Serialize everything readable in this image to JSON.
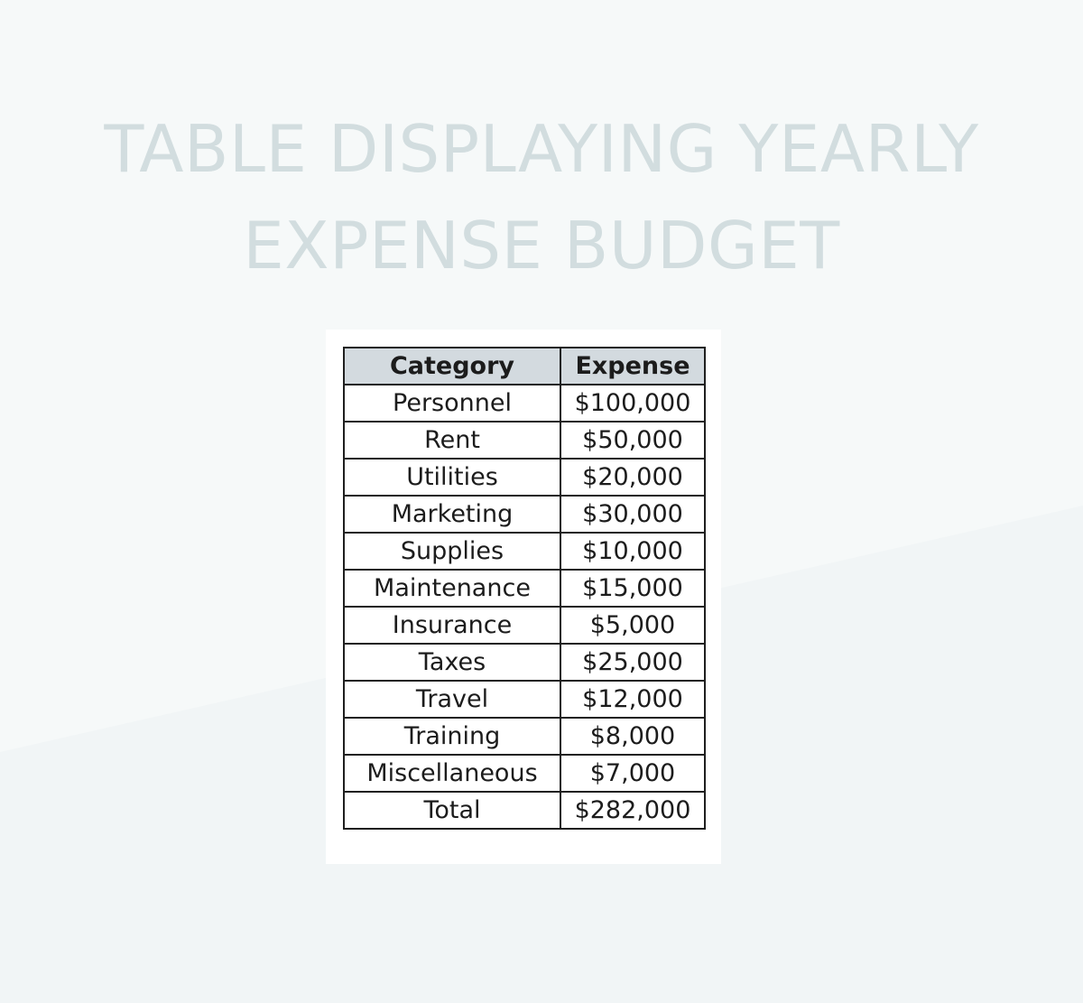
{
  "page": {
    "title": "TABLE DISPLAYING YEARLY\nEXPENSE BUDGET"
  },
  "colors": {
    "background": "#f6f9f9",
    "background_lower": "#f1f5f6",
    "title": "#d2dddf",
    "header_fill": "#d3dadf",
    "border": "#1f1f1f"
  },
  "table": {
    "headers": {
      "category": "Category",
      "expense": "Expense"
    },
    "rows": [
      {
        "category": "Personnel",
        "expense": "$100,000"
      },
      {
        "category": "Rent",
        "expense": "$50,000"
      },
      {
        "category": "Utilities",
        "expense": "$20,000"
      },
      {
        "category": "Marketing",
        "expense": "$30,000"
      },
      {
        "category": "Supplies",
        "expense": "$10,000"
      },
      {
        "category": "Maintenance",
        "expense": "$15,000"
      },
      {
        "category": "Insurance",
        "expense": "$5,000"
      },
      {
        "category": "Taxes",
        "expense": "$25,000"
      },
      {
        "category": "Travel",
        "expense": "$12,000"
      },
      {
        "category": "Training",
        "expense": "$8,000"
      },
      {
        "category": "Miscellaneous",
        "expense": "$7,000"
      },
      {
        "category": "Total",
        "expense": "$282,000"
      }
    ]
  }
}
